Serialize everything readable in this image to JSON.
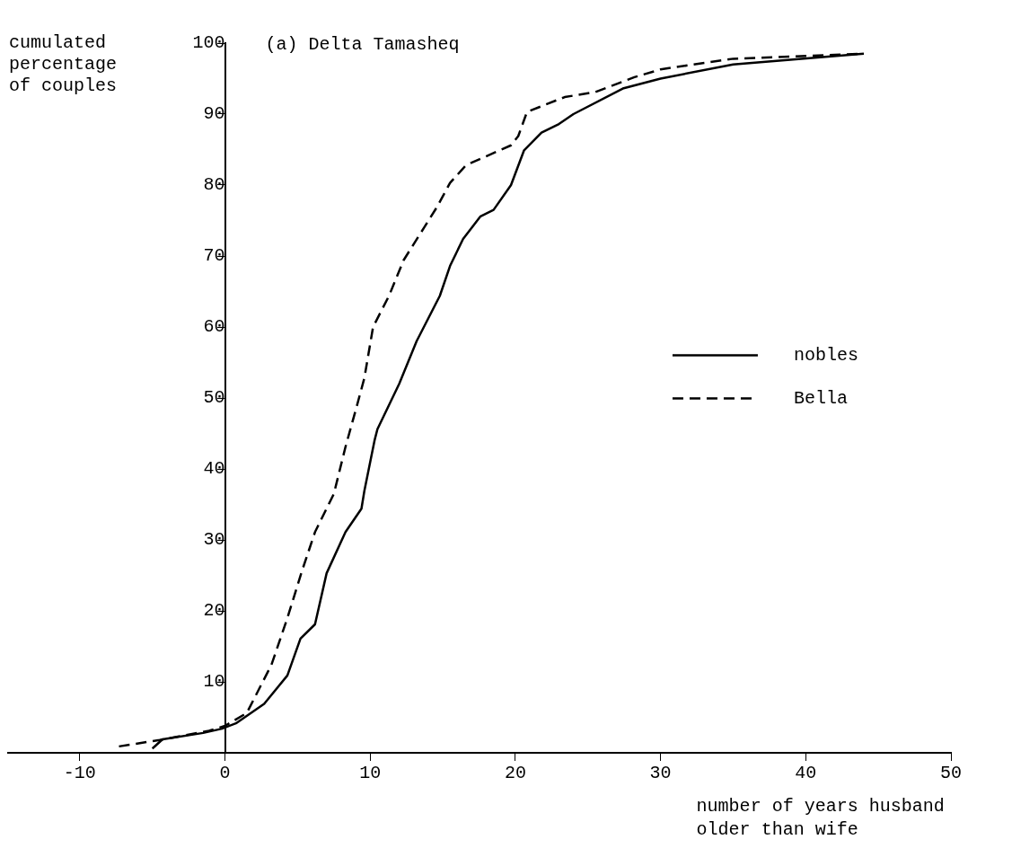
{
  "chart_data": {
    "type": "line",
    "title": "(a) Delta Tamasheq",
    "ylabel": "cumulated percentage of couples",
    "xlabel": "number of years husband older than wife",
    "xlim": [
      -15,
      50
    ],
    "ylim": [
      0,
      100
    ],
    "xticks": [
      -10,
      0,
      10,
      20,
      30,
      40,
      50
    ],
    "yticks": [
      10,
      20,
      30,
      40,
      50,
      60,
      70,
      80,
      90,
      100
    ],
    "grid": false,
    "legend": "right",
    "marker": "none",
    "series": [
      {
        "name": "nobles",
        "color": "#000000",
        "line_style": "solid",
        "x": [
          -5,
          -4.3,
          -1.5,
          -0.2,
          0.8,
          2.7,
          4.3,
          5.2,
          6.2,
          7,
          8.3,
          9.4,
          9.6,
          10.3,
          10.5,
          12,
          13.2,
          14.8,
          15.5,
          16.4,
          17.6,
          18.5,
          19.7,
          20.6,
          21.8,
          23,
          24,
          27.4,
          28.7,
          30,
          35,
          44
        ],
        "values": [
          0.6,
          1.9,
          2.8,
          3.4,
          4.2,
          6.9,
          10.9,
          16.1,
          18.1,
          25.3,
          31.1,
          34.4,
          36.9,
          44,
          45.6,
          52,
          58,
          64.4,
          68.6,
          72.4,
          75.6,
          76.5,
          80,
          84.9,
          87.4,
          88.6,
          90,
          93.6,
          94.3,
          95,
          97,
          98.5
        ]
      },
      {
        "name": "Bella",
        "color": "#000000",
        "line_style": "dashed",
        "x": [
          -7.3,
          -4.5,
          -1.1,
          0,
          1.5,
          3.2,
          4.3,
          5.3,
          6.2,
          7.5,
          8.3,
          9.1,
          9.6,
          10.2,
          11.3,
          12.3,
          14.6,
          15.5,
          16.6,
          19.7,
          20.2,
          20.8,
          23.4,
          25.5,
          28.2,
          30,
          35,
          44
        ],
        "values": [
          0.9,
          1.8,
          3.1,
          3.8,
          5.6,
          12.4,
          19,
          25.6,
          31.1,
          36.5,
          43.1,
          49,
          52.8,
          60,
          64.4,
          69.4,
          76.9,
          80.3,
          82.8,
          85.6,
          86.9,
          90.3,
          92.4,
          93.1,
          95.2,
          96.3,
          97.8,
          98.5
        ]
      }
    ]
  }
}
